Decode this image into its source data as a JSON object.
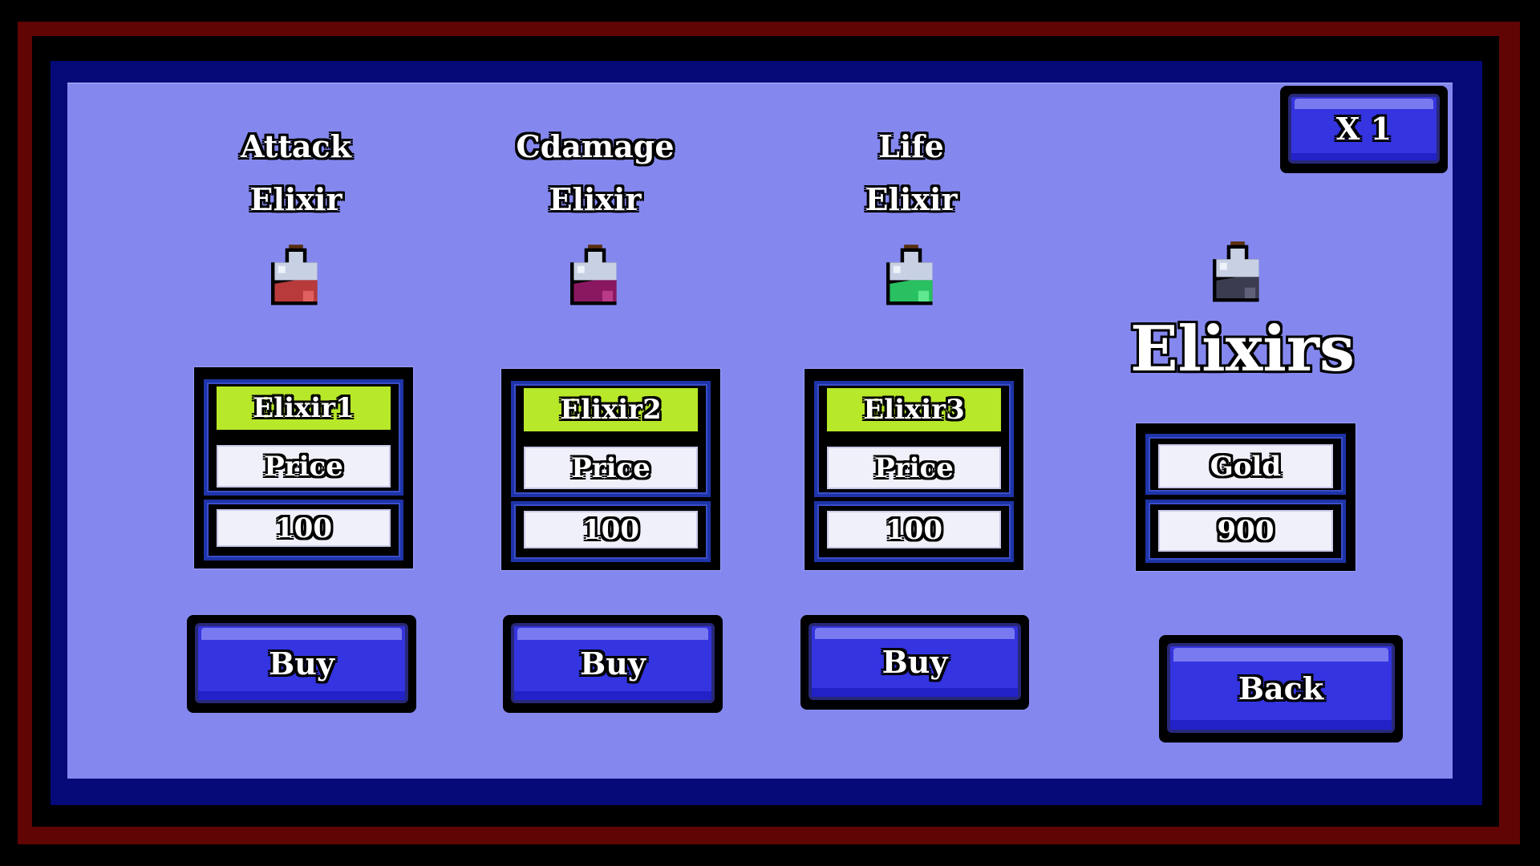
{
  "multiplier_button": "X 1",
  "heading": "Elixirs",
  "colors": {
    "panel": "#8488ee",
    "navy_border": "#060a78",
    "red_border": "#600404",
    "button": "#3434e0",
    "name_bar": "#b8e82a"
  },
  "items": [
    {
      "title1": "Attack",
      "title2": "Elixir",
      "name": "Elixir1",
      "price_label": "Price",
      "price": "100",
      "buy": "Buy",
      "liquid": "#b83a3a",
      "liquid_hi": "#e06060",
      "icon": "red-potion-icon"
    },
    {
      "title1": "Cdamage",
      "title2": "Elixir",
      "name": "Elixir2",
      "price_label": "Price",
      "price": "100",
      "buy": "Buy",
      "liquid": "#8a1860",
      "liquid_hi": "#b83a88",
      "icon": "purple-potion-icon"
    },
    {
      "title1": "Life",
      "title2": "Elixir",
      "name": "Elixir3",
      "price_label": "Price",
      "price": "100",
      "buy": "Buy",
      "liquid": "#28c060",
      "liquid_hi": "#60e890",
      "icon": "green-potion-icon"
    }
  ],
  "gold": {
    "label": "Gold",
    "value": "900",
    "liquid": "#3c3c50",
    "liquid_hi": "#60607a"
  },
  "back": "Back"
}
